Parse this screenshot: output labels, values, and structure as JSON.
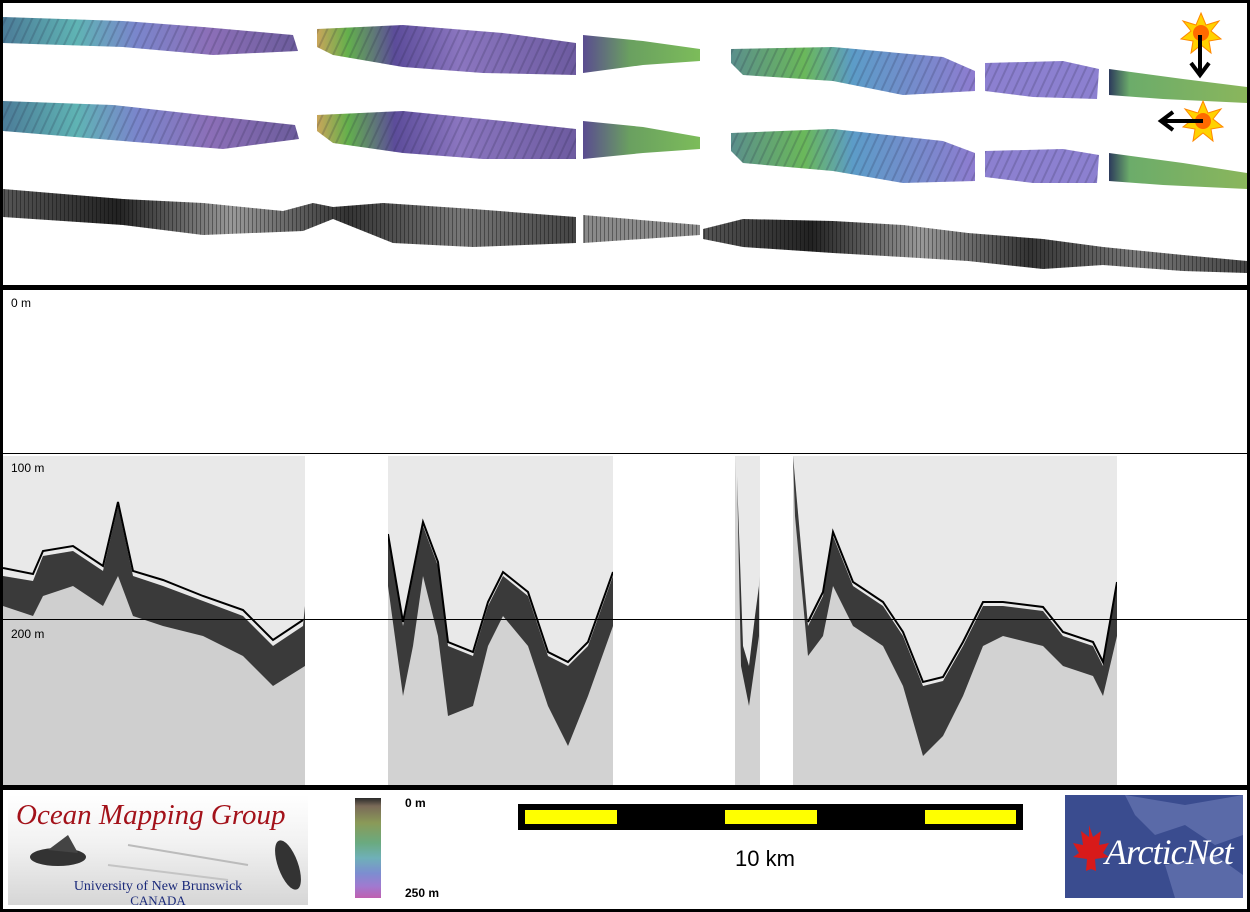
{
  "depth_axis": {
    "label_0": "0 m",
    "label_100": "100 m",
    "label_200": "200 m"
  },
  "colorbar": {
    "top_label": "0 m",
    "bottom_label": "250 m"
  },
  "scale_bar": {
    "label": "10 km"
  },
  "logos": {
    "omg_title": "Ocean Mapping Group",
    "omg_university": "University of New Brunswick",
    "omg_country": "CANADA",
    "arcticnet_text": "ArcticNet"
  },
  "icons": {
    "sun_illumination_1": "sun-illumination-icon",
    "arrow_down": "arrow-down-icon",
    "sun_illumination_2": "sun-illumination-icon",
    "arrow_left": "arrow-left-icon"
  },
  "colors": {
    "scale_yellow": "#ffff00",
    "omg_red": "#a3121a",
    "arcticnet_blue": "#3a4c8f",
    "maple_red": "#d81a1a"
  }
}
